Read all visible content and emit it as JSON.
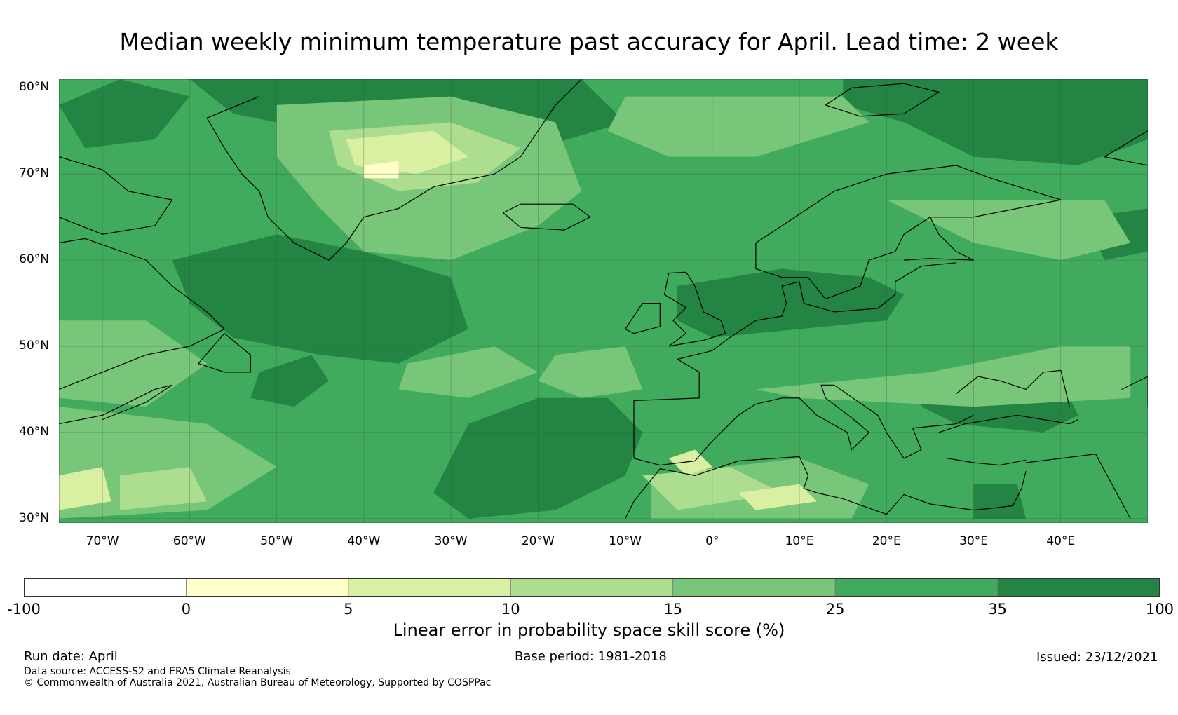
{
  "title": "Median weekly minimum temperature past accuracy for April. Lead time: 2 week",
  "map": {
    "lat_labels": [
      "80°N",
      "70°N",
      "60°N",
      "50°N",
      "40°N",
      "30°N"
    ],
    "lon_labels": [
      "70°W",
      "60°W",
      "50°W",
      "40°W",
      "30°W",
      "20°W",
      "10°W",
      "0°",
      "10°E",
      "20°E",
      "30°E",
      "40°E"
    ],
    "lon_range": [
      -75,
      50
    ],
    "lat_range": [
      29.5,
      81
    ],
    "gridlines": true
  },
  "colorbar": {
    "title": "Linear error in probability space skill score (%)",
    "bounds": [
      "-100",
      "0",
      "5",
      "10",
      "15",
      "25",
      "35",
      "100"
    ],
    "colors": [
      "#ffffff",
      "#ffffcc",
      "#d9f0a3",
      "#addd8e",
      "#78c679",
      "#41ab5d",
      "#238443"
    ]
  },
  "footer": {
    "run_date": "Run date: April",
    "base_period": "Base period: 1981-2018",
    "issued": "Issued: 23/12/2021",
    "data_source": "Data source: ACCESS-S2 and ERA5 Climate Reanalysis",
    "copyright": "© Commonwealth of Australia 2021, Australian Bureau of Meteorology, Supported by COSPPac"
  }
}
